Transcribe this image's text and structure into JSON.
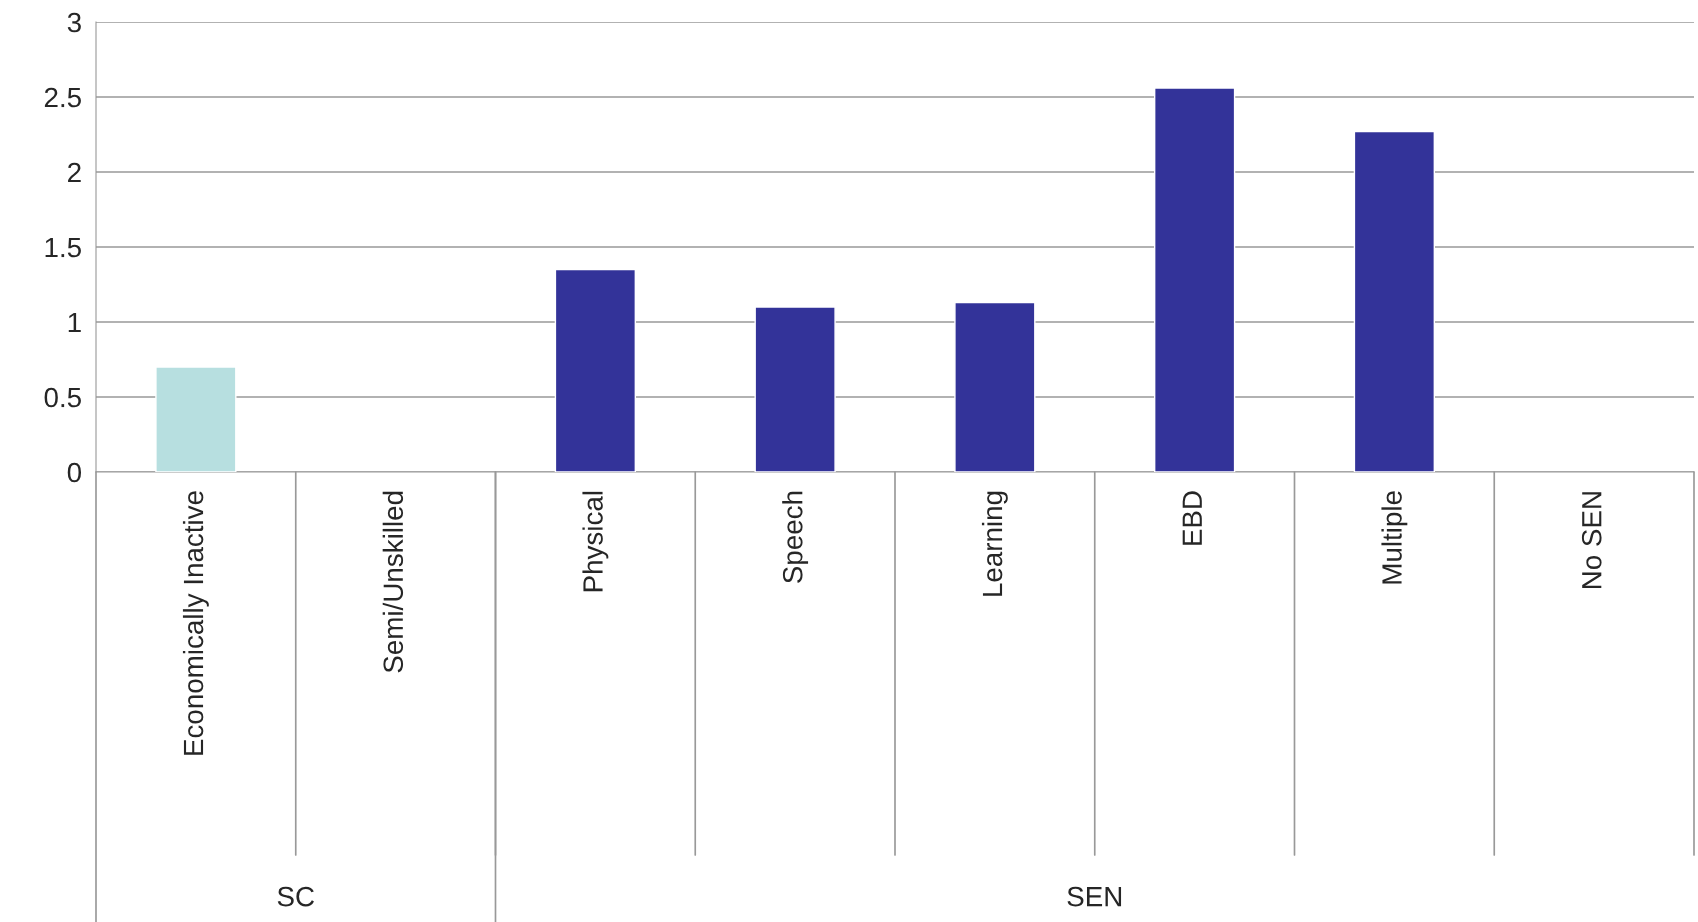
{
  "chart_data": {
    "type": "bar",
    "categories": [
      "Economically Inactive",
      "Semi/Unskilled",
      "Physical",
      "Speech",
      "Learning",
      "EBD",
      "Multiple",
      "No SEN"
    ],
    "values": [
      0.7,
      null,
      1.35,
      1.1,
      1.13,
      2.56,
      2.27,
      null
    ],
    "colors": [
      "#b7dfe0",
      "#b7dfe0",
      "#333399",
      "#333399",
      "#333399",
      "#333399",
      "#333399",
      "#333399"
    ],
    "ylim": [
      0,
      3
    ],
    "yticks": [
      0,
      0.5,
      1,
      1.5,
      2,
      2.5,
      3
    ],
    "grid": "y",
    "annotations": [
      "SC",
      "SEN"
    ]
  }
}
